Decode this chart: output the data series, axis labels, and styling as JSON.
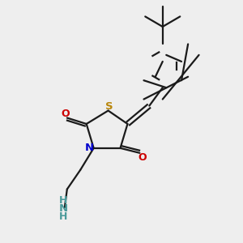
{
  "bg_color": "#eeeeee",
  "bond_color": "#1a1a1a",
  "S_color": "#b8860b",
  "N_color": "#0000cc",
  "O_color": "#cc0000",
  "NH2_color": "#4a9a9a",
  "lw": 1.6,
  "figsize": [
    3.0,
    3.0
  ],
  "dpi": 100,
  "xlim": [
    0,
    10
  ],
  "ylim": [
    0,
    10
  ]
}
